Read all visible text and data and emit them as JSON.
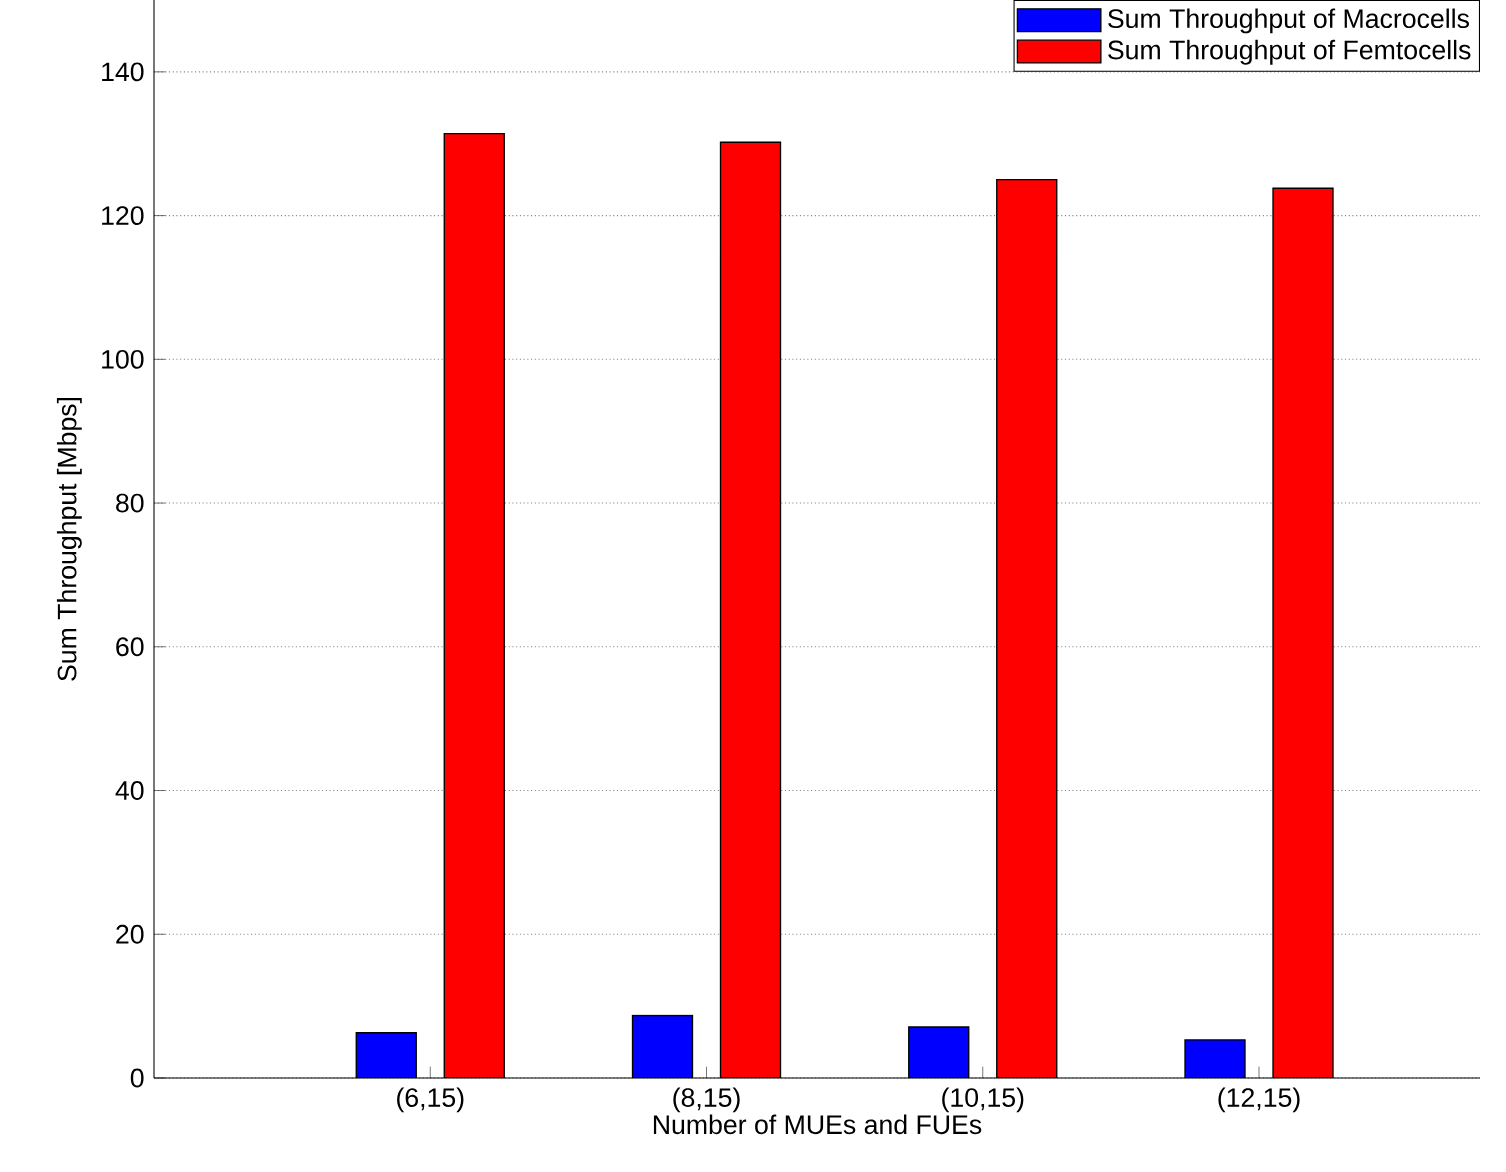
{
  "chart_data": {
    "type": "bar",
    "xlabel": "Number of MUEs and FUEs",
    "ylabel": "Sum Throughput [Mbps]",
    "categories": [
      "(6,15)",
      "(8,15)",
      "(10,15)",
      "(12,15)"
    ],
    "series": [
      {
        "name": "Sum Throughput of Macrocells",
        "color": "#0000ff",
        "values": [
          6.3,
          8.7,
          7.1,
          5.3
        ]
      },
      {
        "name": "Sum Throughput of Femtocells",
        "color": "#ff0000",
        "values": [
          131.4,
          130.2,
          125.0,
          123.8
        ]
      }
    ],
    "ylim": [
      0,
      150
    ],
    "yticks": [
      0,
      20,
      40,
      60,
      80,
      100,
      120,
      140
    ],
    "grid": "y",
    "legend": "top right"
  }
}
